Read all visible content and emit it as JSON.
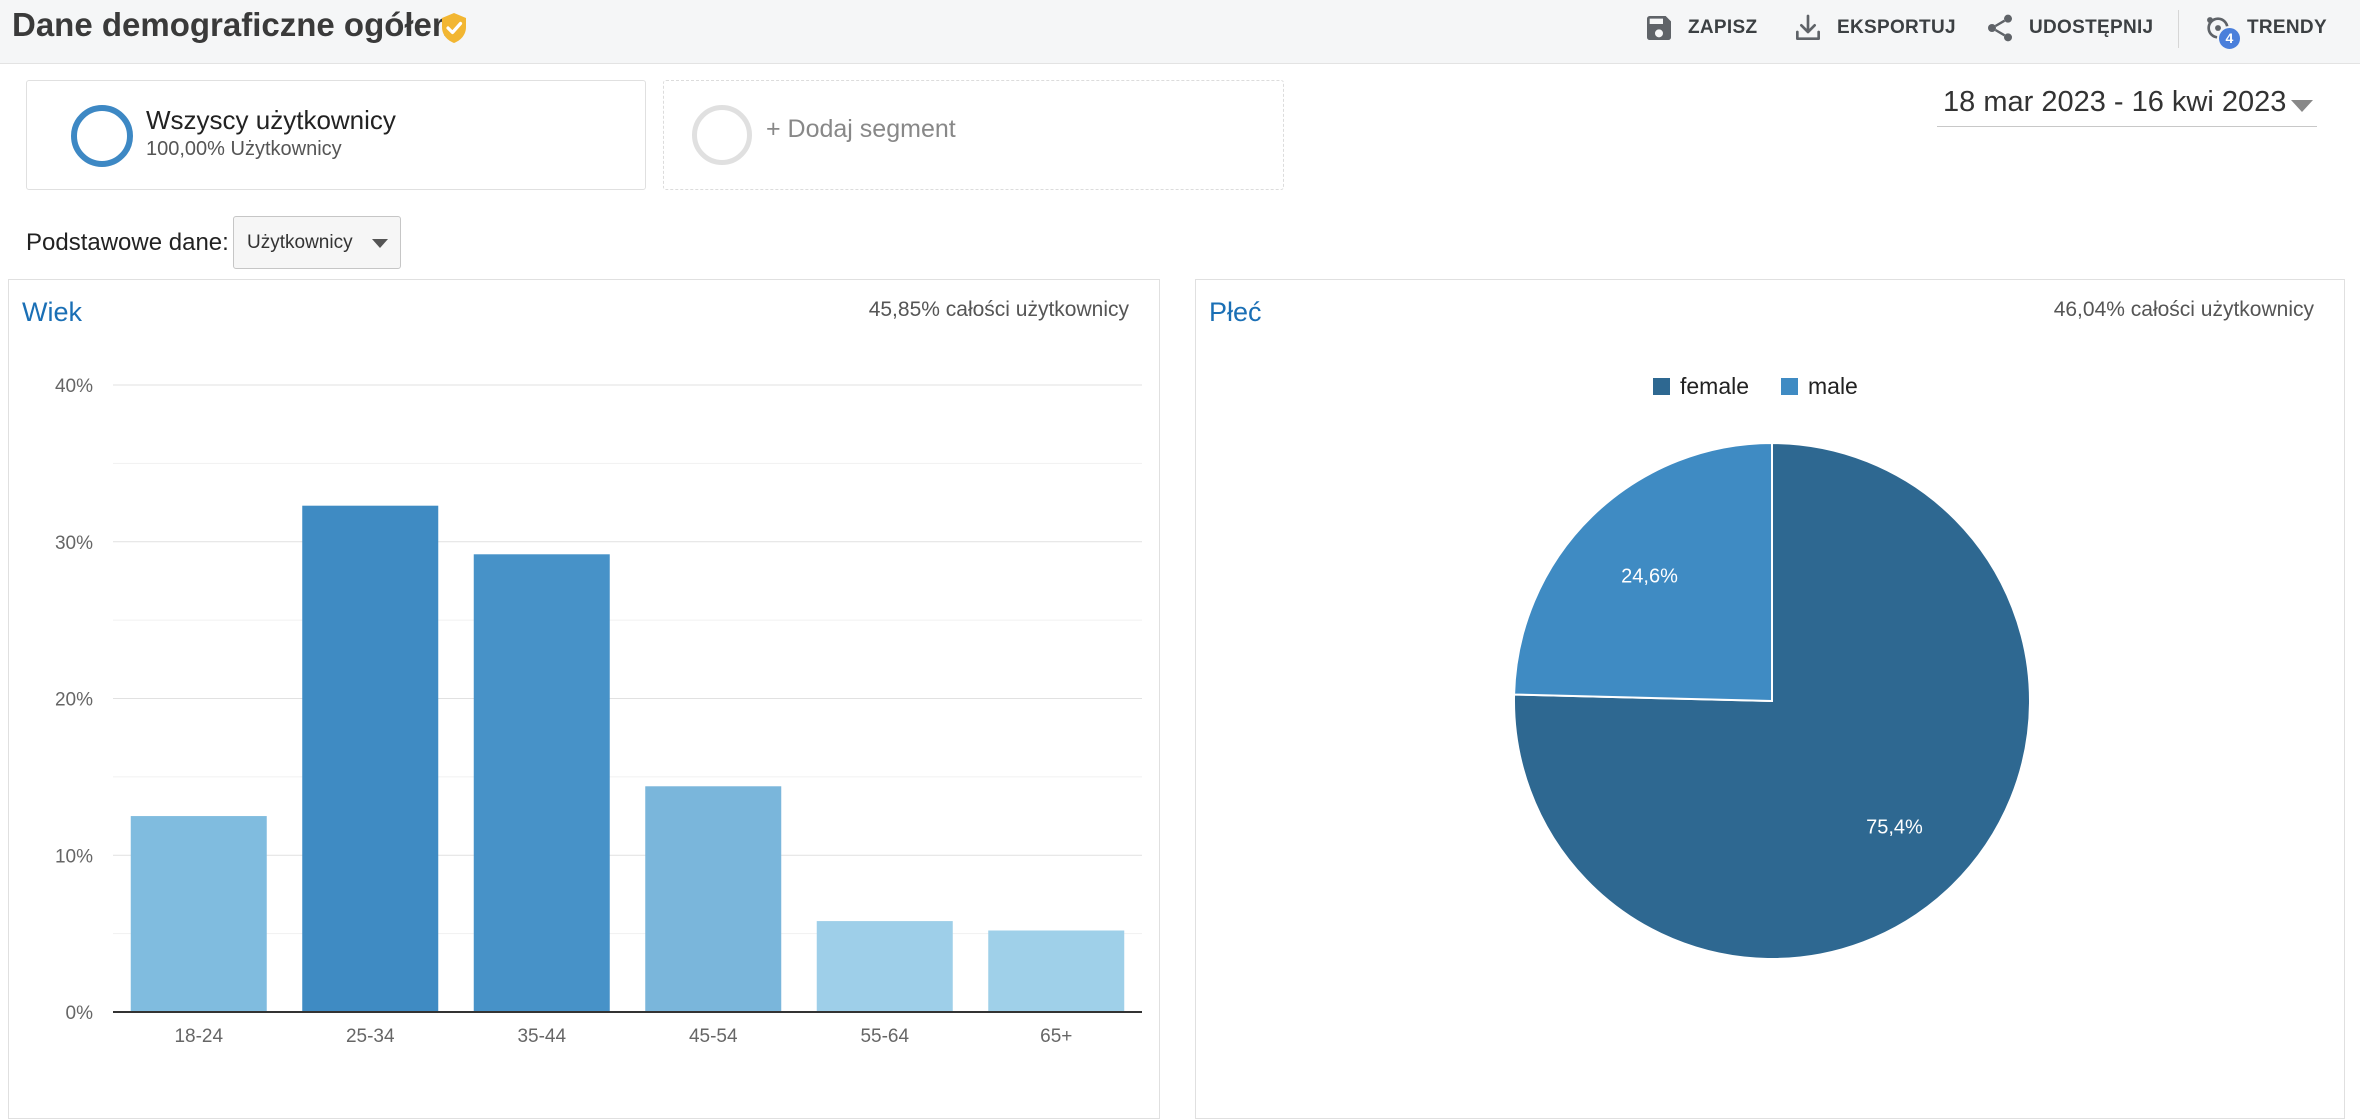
{
  "header": {
    "title": "Dane demograficzne ogółem",
    "actions": {
      "save": "ZAPISZ",
      "export": "EKSPORTUJ",
      "share": "UDOSTĘPNIJ",
      "trends": "TRENDY",
      "trends_badge": "4"
    }
  },
  "segments": {
    "active": {
      "name": "Wszyscy użytkownicy",
      "detail": "100,00% Użytkownicy"
    },
    "add_label": "+ Dodaj segment"
  },
  "date_range": "18 mar 2023 - 16 kwi 2023",
  "primary_dimension": {
    "label": "Podstawowe dane:",
    "value": "Użytkownicy"
  },
  "colors": {
    "accent_blue": "#1a6fb5",
    "ring_blue": "#3d88c4",
    "verified_gold": "#f2b632"
  },
  "chart_data": [
    {
      "type": "bar",
      "title": "Wiek",
      "subtitle": "45,85% całości użytkownicy",
      "categories": [
        "18-24",
        "25-34",
        "35-44",
        "45-54",
        "55-64",
        "65+"
      ],
      "values": [
        12.5,
        32.3,
        29.2,
        14.4,
        5.8,
        5.2
      ],
      "colors": [
        "#80bcdf",
        "#3f8bc3",
        "#4792c8",
        "#7ab6db",
        "#9ecfe9",
        "#9fd0e9"
      ],
      "ylim": [
        0,
        40
      ],
      "yticks": [
        "0%",
        "10%",
        "20%",
        "30%",
        "40%"
      ],
      "grid": true
    },
    {
      "type": "pie",
      "title": "Płeć",
      "subtitle": "46,04% całości użytkownicy",
      "slices": [
        {
          "name": "female",
          "value": 75.4,
          "label": "75,4%",
          "color": "#2e6891"
        },
        {
          "name": "male",
          "value": 24.6,
          "label": "24,6%",
          "color": "#3f8bc3"
        }
      ],
      "legend": "top"
    }
  ]
}
